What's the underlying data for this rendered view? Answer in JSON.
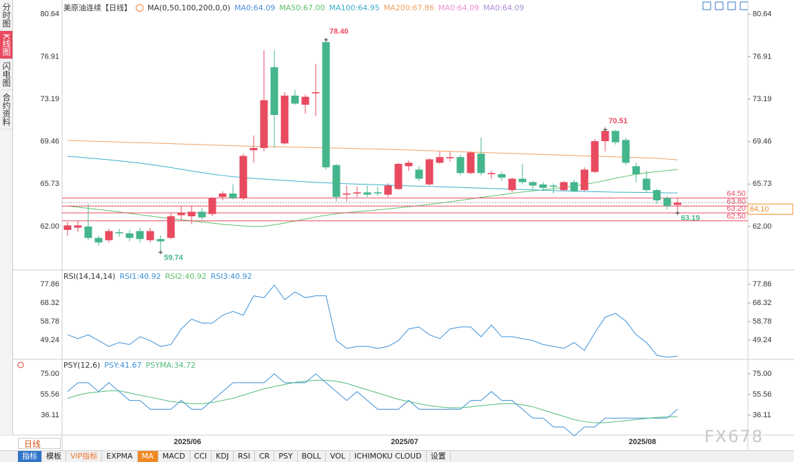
{
  "sidebar": {
    "tabs": [
      {
        "text": "分时图",
        "active": false
      },
      {
        "text": "K线图",
        "active": true
      },
      {
        "text": "闪电图",
        "active": false
      },
      {
        "text": "合约资料",
        "active": false
      }
    ]
  },
  "timeframe": "日线",
  "toolbar": {
    "label": "指标",
    "items": [
      "模板",
      "VIP指标",
      "EXPMA",
      "MA",
      "MACD",
      "CCI",
      "KDJ",
      "RSI",
      "CR",
      "PSY",
      "BOLL",
      "VOL",
      "ICHIMOKU CLOUD",
      "设置"
    ],
    "active_index": 3,
    "vip_index": 1
  },
  "watermark": "FX678",
  "chart_data": [
    {
      "type": "candlestick",
      "title": "美原油连续【日线】",
      "indicator": "MA(0,50,100,200,0,0)",
      "categories": [
        null,
        null,
        null,
        null,
        null,
        null,
        null,
        null,
        null,
        null,
        null,
        null,
        "2025/06",
        null,
        null,
        null,
        null,
        null,
        null,
        null,
        null,
        null,
        null,
        null,
        null,
        null,
        null,
        null,
        null,
        null,
        null,
        null,
        null,
        "2025/07",
        null,
        null,
        null,
        null,
        null,
        null,
        null,
        null,
        null,
        null,
        null,
        null,
        null,
        null,
        null,
        null,
        null,
        null,
        null,
        null,
        null,
        null,
        "2025/08",
        null,
        null,
        null
      ],
      "open": [
        61.7,
        61.9,
        62.0,
        61.0,
        60.8,
        61.5,
        61.4,
        61.6,
        60.8,
        60.9,
        61.0,
        63.0,
        62.9,
        63.3,
        63.1,
        64.6,
        64.9,
        64.5,
        68.7,
        68.9,
        76.0,
        69.3,
        73.5,
        72.7,
        73.7,
        78.2,
        67.4,
        64.8,
        64.9,
        65.0,
        65.0,
        64.8,
        65.3,
        67.3,
        67.0,
        65.7,
        67.6,
        68.0,
        68.1,
        66.7,
        68.4,
        66.6,
        66.6,
        65.2,
        66.2,
        65.9,
        65.7,
        65.6,
        65.2,
        65.9,
        65.2,
        66.8,
        69.5,
        70.4,
        69.6,
        67.3,
        66.2,
        65.2,
        64.5,
        63.9
      ],
      "high": [
        62.4,
        62.5,
        64.0,
        61.2,
        61.8,
        61.8,
        61.7,
        61.9,
        61.9,
        61.2,
        63.2,
        63.8,
        63.8,
        63.6,
        64.6,
        65.1,
        65.7,
        68.4,
        70.0,
        77.5,
        77.5,
        73.8,
        74.0,
        73.6,
        76.3,
        78.4,
        67.5,
        65.6,
        65.5,
        65.6,
        65.5,
        65.8,
        67.6,
        67.8,
        67.3,
        68.0,
        68.6,
        68.6,
        68.3,
        68.6,
        69.8,
        66.9,
        66.8,
        66.3,
        67.5,
        66.0,
        65.9,
        65.8,
        66.0,
        66.1,
        67.2,
        69.7,
        70.51,
        70.5,
        69.8,
        67.6,
        66.9,
        65.3,
        64.7,
        64.5
      ],
      "low": [
        61.2,
        61.5,
        60.8,
        60.3,
        60.6,
        61.1,
        60.7,
        60.6,
        60.6,
        59.74,
        60.9,
        62.6,
        62.2,
        62.6,
        62.9,
        64.3,
        64.4,
        64.3,
        67.6,
        68.6,
        68.9,
        69.2,
        72.7,
        71.9,
        71.7,
        67.0,
        64.2,
        64.2,
        64.6,
        64.6,
        64.7,
        64.6,
        65.2,
        66.9,
        66.0,
        65.6,
        67.5,
        67.7,
        66.5,
        66.6,
        66.5,
        66.2,
        66.0,
        65.0,
        65.7,
        65.3,
        65.1,
        64.9,
        65.1,
        65.0,
        65.1,
        66.7,
        68.6,
        69.2,
        67.4,
        65.9,
        65.0,
        64.0,
        63.5,
        63.19
      ],
      "close": [
        62.1,
        62.1,
        61.0,
        60.6,
        61.6,
        61.4,
        61.0,
        60.9,
        61.6,
        60.7,
        62.9,
        63.2,
        63.3,
        62.8,
        64.5,
        64.9,
        64.5,
        68.2,
        68.9,
        73.1,
        71.8,
        73.5,
        72.8,
        73.4,
        73.8,
        67.2,
        64.6,
        64.9,
        65.0,
        64.8,
        64.9,
        65.6,
        67.5,
        67.6,
        66.2,
        67.9,
        68.1,
        68.1,
        66.7,
        68.5,
        66.7,
        66.7,
        66.3,
        66.2,
        65.9,
        65.6,
        65.4,
        65.5,
        65.9,
        65.1,
        67.0,
        69.5,
        70.4,
        69.4,
        67.6,
        66.6,
        65.2,
        64.3,
        63.8,
        64.1
      ],
      "up_color": "#e84a5f",
      "down_color": "#45b58c",
      "series": [
        {
          "name": "MA0:64.09",
          "color": "#4a90d9"
        },
        {
          "name": "MA50:67.00",
          "color": "#5cbf6a",
          "values": [
            63.8,
            63.7,
            63.6,
            63.5,
            63.4,
            63.28,
            63.16,
            63.04,
            62.92,
            62.8,
            62.7,
            62.6,
            62.5,
            62.4,
            62.3,
            62.2,
            62.12,
            62.05,
            62.0,
            62.02,
            62.15,
            62.3,
            62.48,
            62.66,
            62.84,
            63.0,
            63.12,
            63.22,
            63.3,
            63.38,
            63.46,
            63.55,
            63.64,
            63.74,
            63.84,
            63.95,
            64.06,
            64.18,
            64.3,
            64.43,
            64.56,
            64.68,
            64.8,
            64.92,
            65.03,
            65.13,
            65.23,
            65.33,
            65.44,
            65.56,
            65.7,
            65.86,
            66.04,
            66.24,
            66.42,
            66.58,
            66.72,
            66.82,
            66.92,
            67.0
          ]
        },
        {
          "name": "MA100:64.95",
          "color": "#3aaecb",
          "values": [
            68.17,
            68.1,
            68.02,
            67.94,
            67.86,
            67.77,
            67.67,
            67.57,
            67.45,
            67.32,
            67.18,
            67.03,
            66.88,
            66.74,
            66.6,
            66.48,
            66.38,
            66.3,
            66.23,
            66.17,
            66.11,
            66.05,
            65.99,
            65.93,
            65.88,
            65.84,
            65.8,
            65.76,
            65.73,
            65.7,
            65.67,
            65.64,
            65.61,
            65.58,
            65.55,
            65.52,
            65.49,
            65.46,
            65.43,
            65.4,
            65.37,
            65.34,
            65.31,
            65.28,
            65.25,
            65.22,
            65.19,
            65.16,
            65.13,
            65.1,
            65.08,
            65.06,
            65.04,
            65.02,
            65.01,
            65.0,
            64.99,
            64.98,
            64.96,
            64.95
          ]
        },
        {
          "name": "MA200:67.86",
          "color": "#f0a060",
          "values": [
            69.57,
            69.54,
            69.51,
            69.48,
            69.45,
            69.42,
            69.39,
            69.37,
            69.34,
            69.31,
            69.28,
            69.25,
            69.22,
            69.19,
            69.16,
            69.13,
            69.1,
            69.07,
            69.05,
            69.03,
            69.01,
            68.99,
            68.97,
            68.95,
            68.93,
            68.91,
            68.89,
            68.87,
            68.85,
            68.83,
            68.81,
            68.78,
            68.75,
            68.72,
            68.69,
            68.66,
            68.63,
            68.6,
            68.57,
            68.54,
            68.51,
            68.48,
            68.45,
            68.42,
            68.39,
            68.36,
            68.33,
            68.3,
            68.27,
            68.24,
            68.21,
            68.18,
            68.15,
            68.12,
            68.09,
            68.06,
            68.03,
            68.0,
            67.93,
            67.86
          ]
        },
        {
          "name": "MA0:64.09",
          "color": "#f08ecb"
        },
        {
          "name": "MA0:64.09",
          "color": "#a98bd8"
        }
      ],
      "ylim": [
        58.19,
        81.9
      ],
      "yticks": [
        80.64,
        76.91,
        73.19,
        69.46,
        65.73,
        {
          "value": 62,
          "label": "62.00"
        }
      ],
      "levels": [
        {
          "value": 64.5,
          "label": "64.50"
        },
        {
          "value": 63.8,
          "label": "63.80"
        },
        {
          "value": 63.2,
          "label": "63.20"
        },
        {
          "value": 62.5,
          "label": "62.50"
        }
      ],
      "level_color": "#e84a5f",
      "last_price": {
        "value": 64.1,
        "label": "64.10",
        "color": "#f08a24"
      },
      "annotations": [
        {
          "value": 78.4,
          "label": "78.40",
          "index": 25,
          "color": "#e84a5f"
        },
        {
          "value": 70.51,
          "label": "70.51",
          "index": 52,
          "color": "#e84a5f"
        },
        {
          "value": 59.74,
          "label": "59.74",
          "index": 9,
          "color": "#45b58c"
        },
        {
          "value": 63.19,
          "label": "63.19",
          "index": 59,
          "color": "#45b58c"
        }
      ]
    },
    {
      "type": "line",
      "title": "RSI(14,14,14)",
      "series": [
        {
          "name": "RSI1:40.92",
          "color": "#3a8fd8",
          "values": [
            52,
            50,
            52,
            49,
            46,
            48,
            47,
            51,
            49,
            46,
            47,
            55,
            60,
            58,
            58,
            62,
            64,
            62,
            72,
            71,
            77.5,
            70,
            74,
            71,
            72,
            72,
            49,
            45,
            46,
            46,
            45,
            46,
            49,
            55,
            56,
            52,
            50,
            55,
            56,
            56,
            51,
            57,
            51,
            51,
            50,
            49,
            47,
            46,
            45,
            48,
            44,
            53,
            61,
            63,
            59,
            52,
            48,
            41.5,
            40.5,
            40.92
          ]
        },
        {
          "name": "RSI2:40.92",
          "color": "#5cbf6a"
        },
        {
          "name": "RSI3:40.92",
          "color": "#3a8fd8"
        }
      ],
      "ylim": [
        39.35,
        84.22
      ],
      "yticks": [
        77.86,
        68.32,
        58.78,
        49.24
      ]
    },
    {
      "type": "line",
      "title": "PSY(12,6)",
      "series": [
        {
          "name": "PSY:41.67",
          "color": "#3a8fd8",
          "values": [
            58.33,
            66.67,
            66.67,
            58.33,
            66.67,
            58.33,
            50,
            50,
            41.67,
            41.67,
            41.67,
            50,
            41.67,
            41.67,
            50,
            58.33,
            66.67,
            66.67,
            66.67,
            66.67,
            75,
            66.67,
            66.67,
            66.67,
            75,
            66.67,
            58.33,
            50,
            58.33,
            50,
            41.67,
            41.67,
            41.67,
            50,
            41.67,
            41.67,
            41.67,
            41.67,
            41.67,
            50,
            50,
            58.33,
            50,
            50,
            41.67,
            33.33,
            33.33,
            25,
            25,
            16.67,
            25,
            25,
            33.33,
            33.33,
            33.33,
            33.33,
            33.33,
            33.33,
            33.33,
            41.67
          ]
        },
        {
          "name": "PSYMA:34.72",
          "color": "#4fba7a",
          "values": [
            52,
            55,
            57,
            58,
            59,
            59,
            57,
            55,
            53,
            51,
            49,
            48,
            47,
            47,
            48,
            50,
            52,
            55,
            58,
            61,
            63,
            65,
            67,
            68,
            69,
            69,
            68,
            66,
            63,
            60,
            57,
            54,
            51,
            49,
            47,
            45,
            44,
            43,
            43,
            44,
            45,
            46,
            47,
            47,
            46,
            44,
            41,
            38,
            35,
            32,
            30,
            29,
            29,
            30,
            31,
            32,
            33,
            34,
            34.5,
            34.72
          ]
        }
      ],
      "ylim": [
        15.38,
        88.6
      ],
      "yticks": [
        {
          "value": 75,
          "label": "75.00"
        },
        55.56,
        36.11
      ]
    }
  ]
}
